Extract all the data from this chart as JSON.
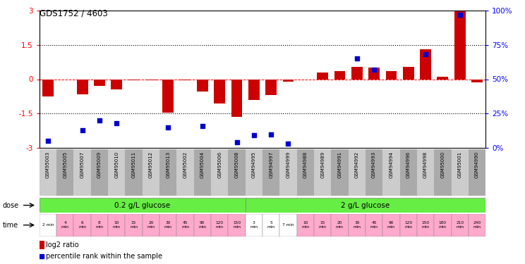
{
  "title": "GDS1752 / 4603",
  "samples": [
    "GSM95003",
    "GSM95005",
    "GSM95007",
    "GSM95009",
    "GSM95010",
    "GSM95011",
    "GSM95012",
    "GSM95013",
    "GSM95002",
    "GSM95004",
    "GSM95006",
    "GSM95008",
    "GSM94995",
    "GSM94997",
    "GSM94999",
    "GSM94988",
    "GSM94989",
    "GSM94991",
    "GSM94992",
    "GSM94993",
    "GSM94994",
    "GSM94996",
    "GSM94998",
    "GSM95000",
    "GSM95001",
    "GSM94990"
  ],
  "log2_ratio": [
    -0.75,
    0.0,
    -0.65,
    -0.3,
    -0.45,
    -0.05,
    -0.05,
    -1.45,
    -0.05,
    -0.55,
    -1.05,
    -1.65,
    -0.9,
    -0.7,
    -0.1,
    0.0,
    0.28,
    0.35,
    0.55,
    0.5,
    0.35,
    0.55,
    1.3,
    0.1,
    3.0,
    -0.15
  ],
  "percentile_rank": [
    5,
    0,
    13,
    20,
    18,
    0,
    0,
    15,
    0,
    16,
    0,
    4,
    9,
    10,
    3,
    0,
    0,
    0,
    65,
    57,
    0,
    0,
    68,
    0,
    97,
    0
  ],
  "time_labels": [
    "2 min",
    "4\nmin",
    "6\nmin",
    "8\nmin",
    "10\nmin",
    "15\nmin",
    "20\nmin",
    "30\nmin",
    "45\nmin",
    "90\nmin",
    "120\nmin",
    "150\nmin",
    "3\nmin",
    "5\nmin",
    "7 min",
    "10\nmin",
    "15\nmin",
    "20\nmin",
    "30\nmin",
    "45\nmin",
    "90\nmin",
    "120\nmin",
    "150\nmin",
    "180\nmin",
    "210\nmin",
    "240\nmin"
  ],
  "time_bg_colors": [
    "#ffffff",
    "#ffaacc",
    "#ffaacc",
    "#ffaacc",
    "#ffaacc",
    "#ffaacc",
    "#ffaacc",
    "#ffaacc",
    "#ffaacc",
    "#ffaacc",
    "#ffaacc",
    "#ffaacc",
    "#ffffff",
    "#ffffff",
    "#ffffff",
    "#ffaacc",
    "#ffaacc",
    "#ffaacc",
    "#ffaacc",
    "#ffaacc",
    "#ffaacc",
    "#ffaacc",
    "#ffaacc",
    "#ffaacc",
    "#ffaacc",
    "#ffaacc"
  ],
  "bar_color": "#cc0000",
  "dot_color": "#0000cc",
  "ylim_left": [
    -3,
    3
  ],
  "ylim_right": [
    0,
    100
  ],
  "yticks_left": [
    -3,
    -1.5,
    0,
    1.5,
    3
  ],
  "yticks_right": [
    0,
    25,
    50,
    75,
    100
  ],
  "yticklabels_right": [
    "0%",
    "25%",
    "50%",
    "75%",
    "100%"
  ],
  "dose1_label": "0.2 g/L glucose",
  "dose2_label": "2 g/L glucose",
  "dose_color": "#66ee44",
  "legend_bar_label": "log2 ratio",
  "legend_dot_label": "percentile rank within the sample",
  "dose_label": "dose",
  "time_label": "time",
  "fig_width": 7.44,
  "fig_height": 3.75,
  "dpi": 100
}
